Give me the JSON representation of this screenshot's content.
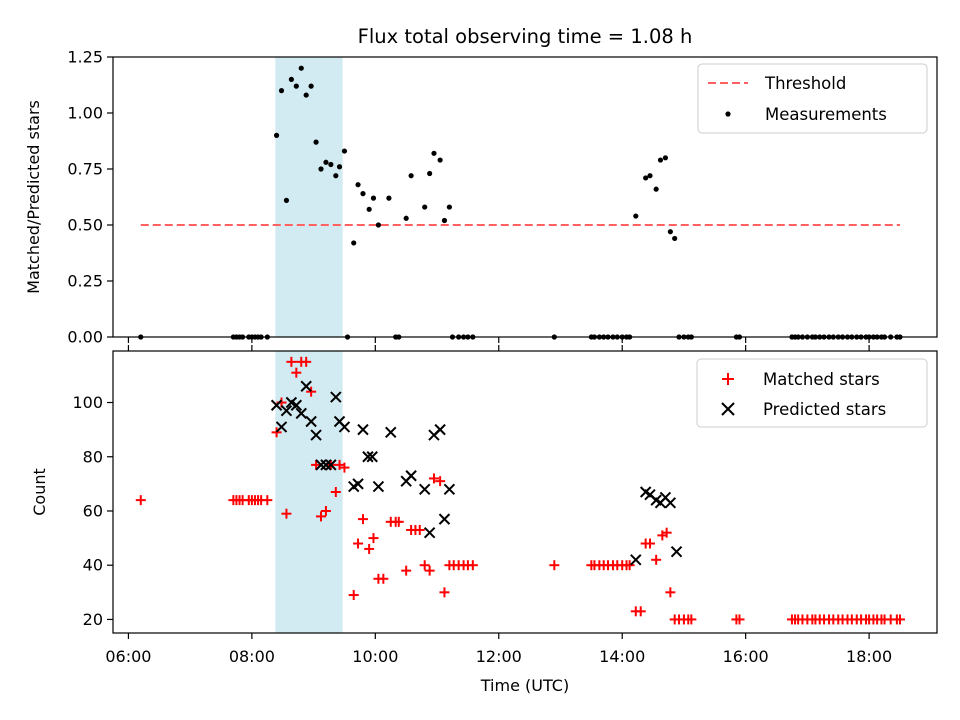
{
  "chart_data": [
    {
      "type": "scatter",
      "title": "Flux total observing time = 1.08 h",
      "ylabel": "Matched/Predicted stars",
      "xlabel": "",
      "ylim": [
        0,
        1.25
      ],
      "xlim": [
        5.75,
        19.1
      ],
      "y_ticks": [
        0,
        0.25,
        0.5,
        0.75,
        1.0,
        1.25
      ],
      "y_tick_labels": [
        "0.00",
        "0.25",
        "0.50",
        "0.75",
        "1.00",
        "1.25"
      ],
      "x_ticks": [
        6,
        8,
        10,
        12,
        14,
        16,
        18
      ],
      "grid": false,
      "legend_position": "top-right",
      "highlight_span": {
        "start": 8.38,
        "end": 9.47,
        "color": "#add8e6"
      },
      "threshold": {
        "name": "Threshold",
        "value": 0.5,
        "x_range": [
          6.2,
          18.5
        ],
        "color": "#ff6060"
      },
      "series": [
        {
          "name": "Measurements",
          "color": "#000000",
          "points": [
            [
              6.2,
              0
            ],
            [
              7.7,
              0
            ],
            [
              7.75,
              0
            ],
            [
              7.8,
              0
            ],
            [
              7.85,
              0
            ],
            [
              7.95,
              0
            ],
            [
              8.0,
              0
            ],
            [
              8.05,
              0
            ],
            [
              8.1,
              0
            ],
            [
              8.15,
              0
            ],
            [
              8.25,
              0
            ],
            [
              8.4,
              0.9
            ],
            [
              8.48,
              1.1
            ],
            [
              8.56,
              0.61
            ],
            [
              8.64,
              1.15
            ],
            [
              8.72,
              1.12
            ],
            [
              8.8,
              1.2
            ],
            [
              8.88,
              1.08
            ],
            [
              8.96,
              1.12
            ],
            [
              9.04,
              0.87
            ],
            [
              9.12,
              0.75
            ],
            [
              9.2,
              0.78
            ],
            [
              9.28,
              0.77
            ],
            [
              9.36,
              0.72
            ],
            [
              9.42,
              0.76
            ],
            [
              9.5,
              0.83
            ],
            [
              9.55,
              0
            ],
            [
              9.65,
              0.42
            ],
            [
              9.72,
              0.68
            ],
            [
              9.8,
              0.64
            ],
            [
              9.9,
              0.57
            ],
            [
              9.97,
              0.62
            ],
            [
              10.05,
              0.5
            ],
            [
              10.22,
              0.62
            ],
            [
              10.33,
              0
            ],
            [
              10.38,
              0
            ],
            [
              10.5,
              0.53
            ],
            [
              10.58,
              0.72
            ],
            [
              10.8,
              0.58
            ],
            [
              10.88,
              0.73
            ],
            [
              10.95,
              0.82
            ],
            [
              11.05,
              0.79
            ],
            [
              11.12,
              0.52
            ],
            [
              11.2,
              0.58
            ],
            [
              11.25,
              0
            ],
            [
              11.35,
              0
            ],
            [
              11.43,
              0
            ],
            [
              11.5,
              0
            ],
            [
              11.58,
              0
            ],
            [
              12.9,
              0
            ],
            [
              13.5,
              0
            ],
            [
              13.55,
              0
            ],
            [
              13.63,
              0
            ],
            [
              13.7,
              0
            ],
            [
              13.77,
              0
            ],
            [
              13.85,
              0
            ],
            [
              13.92,
              0
            ],
            [
              14.0,
              0
            ],
            [
              14.07,
              0
            ],
            [
              14.12,
              0
            ],
            [
              14.22,
              0.54
            ],
            [
              14.38,
              0.71
            ],
            [
              14.45,
              0.72
            ],
            [
              14.55,
              0.66
            ],
            [
              14.62,
              0.79
            ],
            [
              14.7,
              0.8
            ],
            [
              14.78,
              0.47
            ],
            [
              14.85,
              0.44
            ],
            [
              14.92,
              0
            ],
            [
              15.0,
              0
            ],
            [
              15.07,
              0
            ],
            [
              15.12,
              0
            ],
            [
              15.85,
              0
            ],
            [
              15.9,
              0
            ],
            [
              16.75,
              0
            ],
            [
              16.8,
              0
            ],
            [
              16.85,
              0
            ],
            [
              16.92,
              0
            ],
            [
              17.0,
              0
            ],
            [
              17.08,
              0
            ],
            [
              17.13,
              0
            ],
            [
              17.2,
              0
            ],
            [
              17.27,
              0
            ],
            [
              17.35,
              0
            ],
            [
              17.42,
              0
            ],
            [
              17.5,
              0
            ],
            [
              17.57,
              0
            ],
            [
              17.65,
              0
            ],
            [
              17.72,
              0
            ],
            [
              17.8,
              0
            ],
            [
              17.87,
              0
            ],
            [
              17.95,
              0
            ],
            [
              18.0,
              0
            ],
            [
              18.07,
              0
            ],
            [
              18.13,
              0
            ],
            [
              18.2,
              0
            ],
            [
              18.25,
              0
            ],
            [
              18.35,
              0
            ],
            [
              18.45,
              0
            ],
            [
              18.5,
              0
            ]
          ]
        }
      ]
    },
    {
      "type": "scatter",
      "title": "",
      "ylabel": "Count",
      "xlabel": "Time (UTC)",
      "ylim": [
        15,
        119
      ],
      "xlim": [
        5.75,
        19.1
      ],
      "y_ticks": [
        20,
        40,
        60,
        80,
        100
      ],
      "y_tick_labels": [
        "20",
        "40",
        "60",
        "80",
        "100"
      ],
      "x_ticks": [
        6,
        8,
        10,
        12,
        14,
        16,
        18
      ],
      "x_tick_labels": [
        "06:00",
        "08:00",
        "10:00",
        "12:00",
        "14:00",
        "16:00",
        "18:00"
      ],
      "grid": false,
      "legend_position": "top-right",
      "highlight_span": {
        "start": 8.38,
        "end": 9.47,
        "color": "#add8e6"
      },
      "series": [
        {
          "name": "Matched stars",
          "marker": "plus",
          "color": "#ff0000",
          "points": [
            [
              6.2,
              64
            ],
            [
              7.7,
              64
            ],
            [
              7.75,
              64
            ],
            [
              7.8,
              64
            ],
            [
              7.85,
              64
            ],
            [
              7.95,
              64
            ],
            [
              8.0,
              64
            ],
            [
              8.05,
              64
            ],
            [
              8.1,
              64
            ],
            [
              8.15,
              64
            ],
            [
              8.25,
              64
            ],
            [
              8.4,
              89
            ],
            [
              8.48,
              100
            ],
            [
              8.56,
              59
            ],
            [
              8.64,
              115
            ],
            [
              8.72,
              111
            ],
            [
              8.8,
              115
            ],
            [
              8.88,
              115
            ],
            [
              8.96,
              104
            ],
            [
              9.04,
              77
            ],
            [
              9.12,
              58
            ],
            [
              9.2,
              60
            ],
            [
              9.28,
              77
            ],
            [
              9.36,
              67
            ],
            [
              9.42,
              77
            ],
            [
              9.5,
              76
            ],
            [
              9.65,
              29
            ],
            [
              9.72,
              48
            ],
            [
              9.8,
              57
            ],
            [
              9.9,
              46
            ],
            [
              9.97,
              50
            ],
            [
              10.05,
              35
            ],
            [
              10.13,
              35
            ],
            [
              10.25,
              56
            ],
            [
              10.33,
              56
            ],
            [
              10.38,
              56
            ],
            [
              10.5,
              38
            ],
            [
              10.58,
              53
            ],
            [
              10.65,
              53
            ],
            [
              10.72,
              53
            ],
            [
              10.8,
              40
            ],
            [
              10.88,
              38
            ],
            [
              10.95,
              72
            ],
            [
              11.05,
              71
            ],
            [
              11.12,
              30
            ],
            [
              11.2,
              40
            ],
            [
              11.27,
              40
            ],
            [
              11.35,
              40
            ],
            [
              11.43,
              40
            ],
            [
              11.5,
              40
            ],
            [
              11.58,
              40
            ],
            [
              12.9,
              40
            ],
            [
              13.5,
              40
            ],
            [
              13.55,
              40
            ],
            [
              13.63,
              40
            ],
            [
              13.7,
              40
            ],
            [
              13.77,
              40
            ],
            [
              13.85,
              40
            ],
            [
              13.92,
              40
            ],
            [
              14.0,
              40
            ],
            [
              14.07,
              40
            ],
            [
              14.12,
              40
            ],
            [
              14.22,
              23
            ],
            [
              14.3,
              23
            ],
            [
              14.38,
              48
            ],
            [
              14.45,
              48
            ],
            [
              14.55,
              42
            ],
            [
              14.65,
              51
            ],
            [
              14.72,
              52
            ],
            [
              14.78,
              30
            ],
            [
              14.85,
              20
            ],
            [
              14.92,
              20
            ],
            [
              15.0,
              20
            ],
            [
              15.07,
              20
            ],
            [
              15.12,
              20
            ],
            [
              15.85,
              20
            ],
            [
              15.9,
              20
            ],
            [
              16.75,
              20
            ],
            [
              16.8,
              20
            ],
            [
              16.85,
              20
            ],
            [
              16.92,
              20
            ],
            [
              17.0,
              20
            ],
            [
              17.08,
              20
            ],
            [
              17.13,
              20
            ],
            [
              17.2,
              20
            ],
            [
              17.27,
              20
            ],
            [
              17.35,
              20
            ],
            [
              17.42,
              20
            ],
            [
              17.5,
              20
            ],
            [
              17.57,
              20
            ],
            [
              17.65,
              20
            ],
            [
              17.72,
              20
            ],
            [
              17.8,
              20
            ],
            [
              17.87,
              20
            ],
            [
              17.95,
              20
            ],
            [
              18.0,
              20
            ],
            [
              18.07,
              20
            ],
            [
              18.13,
              20
            ],
            [
              18.2,
              20
            ],
            [
              18.25,
              20
            ],
            [
              18.35,
              20
            ],
            [
              18.45,
              20
            ],
            [
              18.5,
              20
            ]
          ]
        },
        {
          "name": "Predicted stars",
          "marker": "x",
          "color": "#000000",
          "points": [
            [
              8.4,
              99
            ],
            [
              8.48,
              91
            ],
            [
              8.56,
              97
            ],
            [
              8.64,
              100
            ],
            [
              8.72,
              99
            ],
            [
              8.8,
              96
            ],
            [
              8.88,
              106
            ],
            [
              8.96,
              93
            ],
            [
              9.04,
              88
            ],
            [
              9.12,
              77
            ],
            [
              9.2,
              77
            ],
            [
              9.28,
              77
            ],
            [
              9.36,
              102
            ],
            [
              9.42,
              93
            ],
            [
              9.5,
              91
            ],
            [
              9.65,
              69
            ],
            [
              9.72,
              70
            ],
            [
              9.8,
              90
            ],
            [
              9.88,
              80
            ],
            [
              9.95,
              80
            ],
            [
              10.05,
              69
            ],
            [
              10.25,
              89
            ],
            [
              10.5,
              71
            ],
            [
              10.58,
              73
            ],
            [
              10.8,
              68
            ],
            [
              10.88,
              52
            ],
            [
              10.95,
              88
            ],
            [
              11.05,
              90
            ],
            [
              11.12,
              57
            ],
            [
              11.2,
              68
            ],
            [
              14.22,
              42
            ],
            [
              14.38,
              67
            ],
            [
              14.45,
              66
            ],
            [
              14.55,
              64
            ],
            [
              14.62,
              63
            ],
            [
              14.7,
              65
            ],
            [
              14.78,
              63
            ],
            [
              14.88,
              45
            ]
          ]
        }
      ]
    }
  ]
}
